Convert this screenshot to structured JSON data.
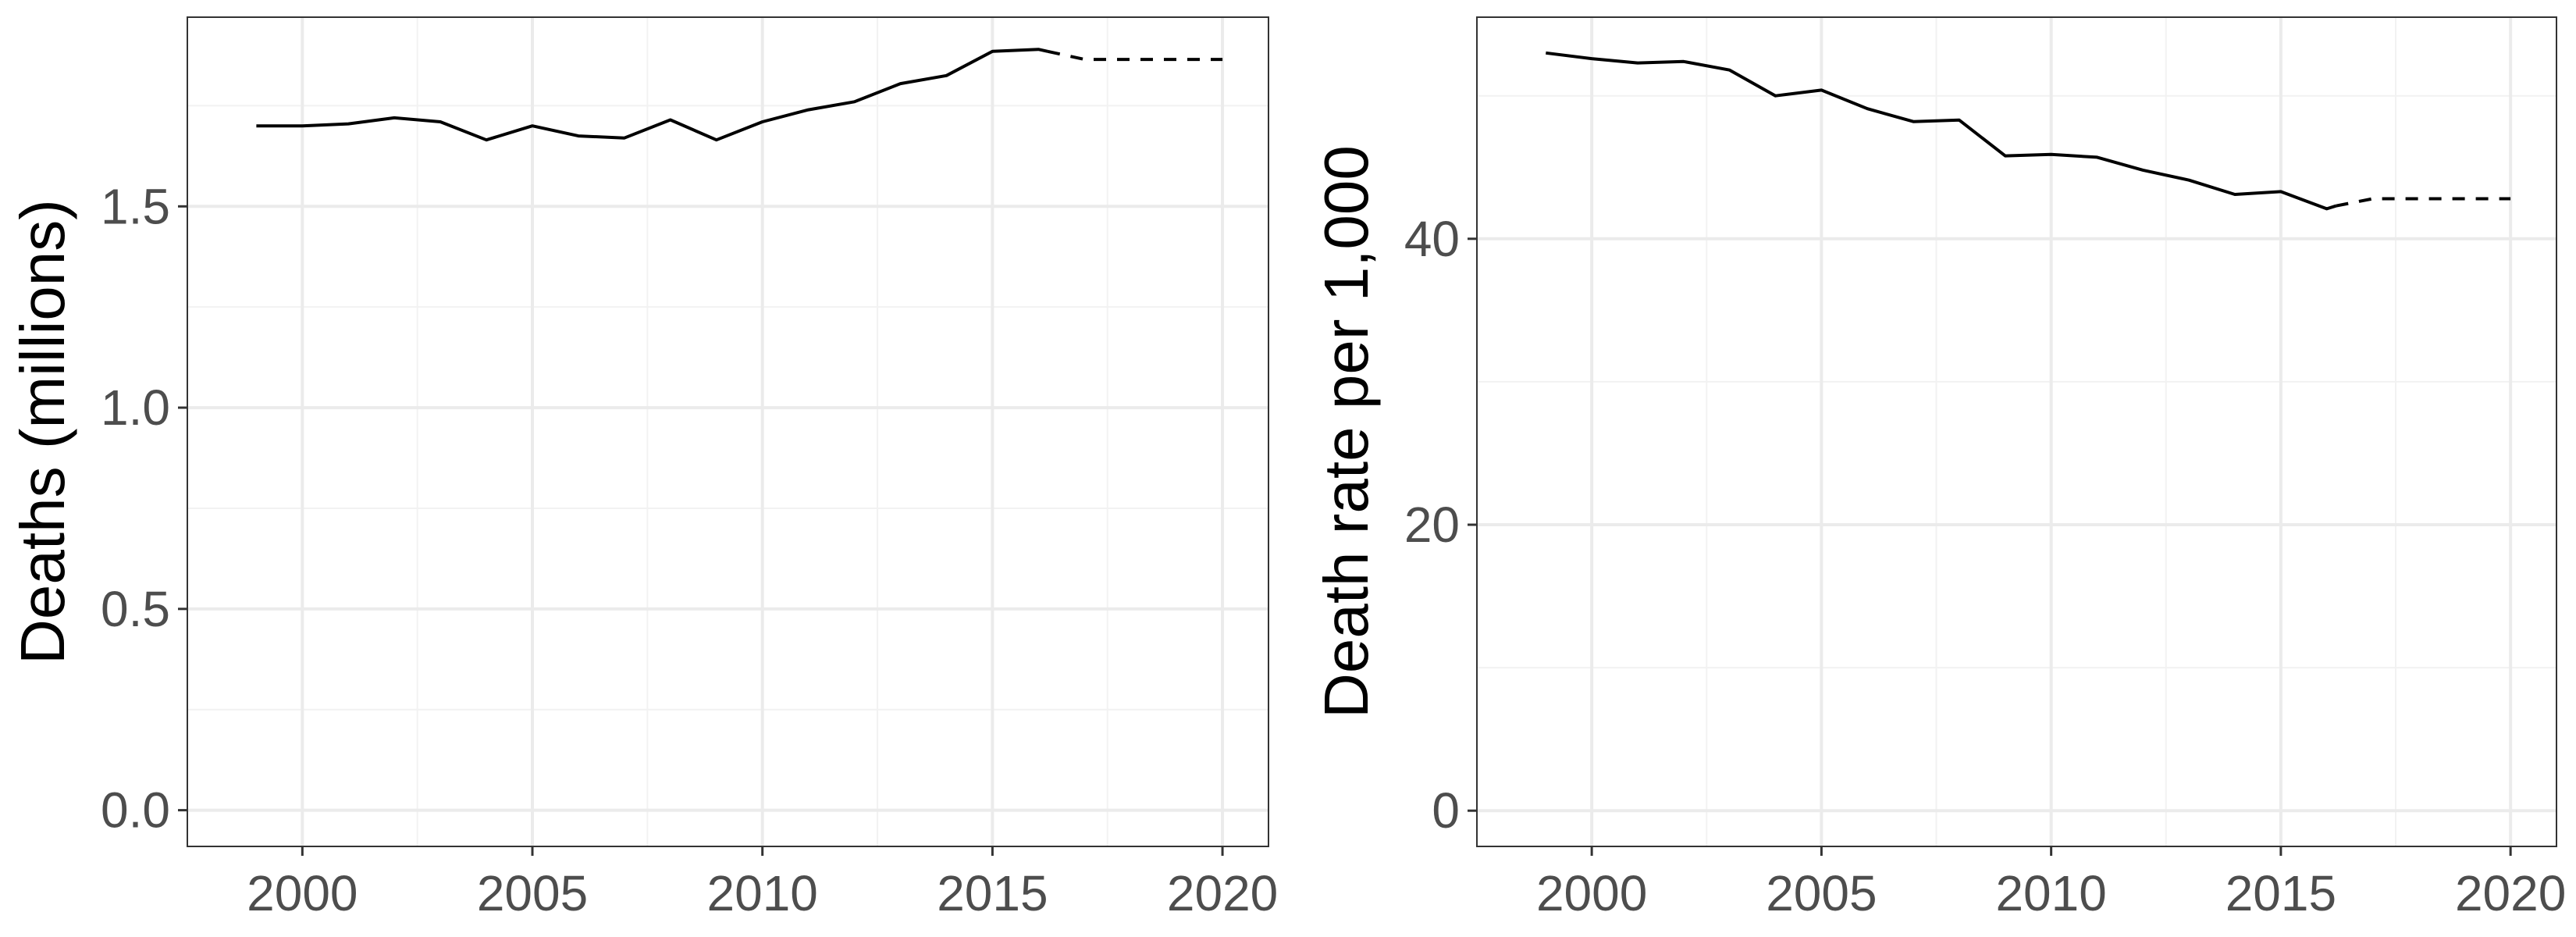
{
  "chart_data": [
    {
      "type": "line",
      "xlabel": "",
      "ylabel": "Deaths (millions)",
      "xlim": [
        1997.5,
        2021.0
      ],
      "ylim": [
        -0.09,
        1.97
      ],
      "x_ticks": [
        2000,
        2005,
        2010,
        2015,
        2020
      ],
      "x_tick_labels": [
        "2000",
        "2005",
        "2010",
        "2015",
        "2020"
      ],
      "y_ticks": [
        0.0,
        0.5,
        1.0,
        1.5
      ],
      "y_tick_labels": [
        "0.0",
        "0.5",
        "1.0",
        "1.5"
      ],
      "grid": true,
      "series": [
        {
          "style": "solid",
          "x": [
            1999,
            2000,
            2001,
            2002,
            2003,
            2004,
            2005,
            2006,
            2007,
            2008,
            2009,
            2010,
            2011,
            2012,
            2013,
            2014,
            2015,
            2016,
            2016.2
          ],
          "y": [
            1.7,
            1.7,
            1.705,
            1.72,
            1.71,
            1.665,
            1.7,
            1.675,
            1.67,
            1.715,
            1.665,
            1.71,
            1.74,
            1.76,
            1.805,
            1.825,
            1.885,
            1.89,
            1.885
          ]
        },
        {
          "style": "dashed",
          "x": [
            2016.2,
            2017,
            2018,
            2019,
            2020
          ],
          "y": [
            1.885,
            1.865,
            1.865,
            1.865,
            1.865
          ]
        }
      ]
    },
    {
      "type": "line",
      "xlabel": "",
      "ylabel": "Death rate per 1,000",
      "xlim": [
        1997.5,
        2021.0
      ],
      "ylim": [
        -2.5,
        55.5
      ],
      "x_ticks": [
        2000,
        2005,
        2010,
        2015,
        2020
      ],
      "x_tick_labels": [
        "2000",
        "2005",
        "2010",
        "2015",
        "2020"
      ],
      "y_ticks": [
        0,
        20,
        40
      ],
      "y_tick_labels": [
        "0",
        "20",
        "40"
      ],
      "grid": true,
      "series": [
        {
          "style": "solid",
          "x": [
            1999,
            2000,
            2001,
            2002,
            2003,
            2004,
            2005,
            2006,
            2007,
            2008,
            2009,
            2010,
            2011,
            2012,
            2013,
            2014,
            2015,
            2016,
            2016.2
          ],
          "y": [
            53.0,
            52.6,
            52.3,
            52.4,
            51.8,
            50.0,
            50.4,
            49.1,
            48.2,
            48.3,
            45.8,
            45.9,
            45.7,
            44.8,
            44.1,
            43.1,
            43.3,
            42.1,
            42.3
          ]
        },
        {
          "style": "dashed",
          "x": [
            2016.2,
            2017,
            2018,
            2019,
            2020
          ],
          "y": [
            42.3,
            42.8,
            42.8,
            42.8,
            42.8
          ]
        }
      ]
    }
  ]
}
